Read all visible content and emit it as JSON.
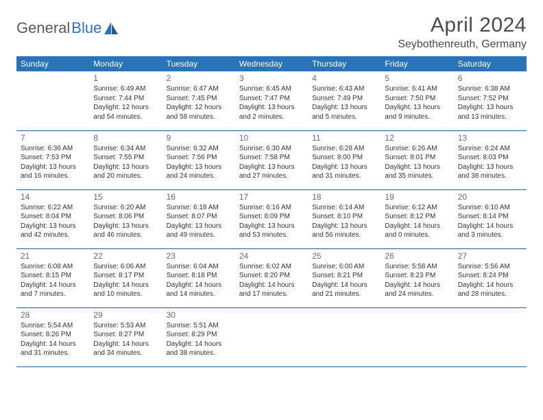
{
  "brand": {
    "part1": "General",
    "part2": "Blue"
  },
  "title": "April 2024",
  "location": "Seybothenreuth, Germany",
  "colors": {
    "header_bg": "#2a73b8",
    "header_text": "#ffffff",
    "row_border": "#2a5a8a",
    "body_text": "#333333",
    "daynum_text": "#6a6a6a",
    "title_text": "#4a4a4a",
    "brand_gray": "#5a5a5a",
    "brand_blue": "#2a73b8",
    "page_bg": "#ffffff"
  },
  "dow": [
    "Sunday",
    "Monday",
    "Tuesday",
    "Wednesday",
    "Thursday",
    "Friday",
    "Saturday"
  ],
  "weeks": [
    [
      {
        "n": "",
        "sun": "",
        "set": "",
        "day": ""
      },
      {
        "n": "1",
        "sun": "Sunrise: 6:49 AM",
        "set": "Sunset: 7:44 PM",
        "day": "Daylight: 12 hours and 54 minutes."
      },
      {
        "n": "2",
        "sun": "Sunrise: 6:47 AM",
        "set": "Sunset: 7:45 PM",
        "day": "Daylight: 12 hours and 58 minutes."
      },
      {
        "n": "3",
        "sun": "Sunrise: 6:45 AM",
        "set": "Sunset: 7:47 PM",
        "day": "Daylight: 13 hours and 2 minutes."
      },
      {
        "n": "4",
        "sun": "Sunrise: 6:43 AM",
        "set": "Sunset: 7:49 PM",
        "day": "Daylight: 13 hours and 5 minutes."
      },
      {
        "n": "5",
        "sun": "Sunrise: 6:41 AM",
        "set": "Sunset: 7:50 PM",
        "day": "Daylight: 13 hours and 9 minutes."
      },
      {
        "n": "6",
        "sun": "Sunrise: 6:38 AM",
        "set": "Sunset: 7:52 PM",
        "day": "Daylight: 13 hours and 13 minutes."
      }
    ],
    [
      {
        "n": "7",
        "sun": "Sunrise: 6:36 AM",
        "set": "Sunset: 7:53 PM",
        "day": "Daylight: 13 hours and 16 minutes."
      },
      {
        "n": "8",
        "sun": "Sunrise: 6:34 AM",
        "set": "Sunset: 7:55 PM",
        "day": "Daylight: 13 hours and 20 minutes."
      },
      {
        "n": "9",
        "sun": "Sunrise: 6:32 AM",
        "set": "Sunset: 7:56 PM",
        "day": "Daylight: 13 hours and 24 minutes."
      },
      {
        "n": "10",
        "sun": "Sunrise: 6:30 AM",
        "set": "Sunset: 7:58 PM",
        "day": "Daylight: 13 hours and 27 minutes."
      },
      {
        "n": "11",
        "sun": "Sunrise: 6:28 AM",
        "set": "Sunset: 8:00 PM",
        "day": "Daylight: 13 hours and 31 minutes."
      },
      {
        "n": "12",
        "sun": "Sunrise: 6:26 AM",
        "set": "Sunset: 8:01 PM",
        "day": "Daylight: 13 hours and 35 minutes."
      },
      {
        "n": "13",
        "sun": "Sunrise: 6:24 AM",
        "set": "Sunset: 8:03 PM",
        "day": "Daylight: 13 hours and 38 minutes."
      }
    ],
    [
      {
        "n": "14",
        "sun": "Sunrise: 6:22 AM",
        "set": "Sunset: 8:04 PM",
        "day": "Daylight: 13 hours and 42 minutes."
      },
      {
        "n": "15",
        "sun": "Sunrise: 6:20 AM",
        "set": "Sunset: 8:06 PM",
        "day": "Daylight: 13 hours and 46 minutes."
      },
      {
        "n": "16",
        "sun": "Sunrise: 6:18 AM",
        "set": "Sunset: 8:07 PM",
        "day": "Daylight: 13 hours and 49 minutes."
      },
      {
        "n": "17",
        "sun": "Sunrise: 6:16 AM",
        "set": "Sunset: 8:09 PM",
        "day": "Daylight: 13 hours and 53 minutes."
      },
      {
        "n": "18",
        "sun": "Sunrise: 6:14 AM",
        "set": "Sunset: 8:10 PM",
        "day": "Daylight: 13 hours and 56 minutes."
      },
      {
        "n": "19",
        "sun": "Sunrise: 6:12 AM",
        "set": "Sunset: 8:12 PM",
        "day": "Daylight: 14 hours and 0 minutes."
      },
      {
        "n": "20",
        "sun": "Sunrise: 6:10 AM",
        "set": "Sunset: 8:14 PM",
        "day": "Daylight: 14 hours and 3 minutes."
      }
    ],
    [
      {
        "n": "21",
        "sun": "Sunrise: 6:08 AM",
        "set": "Sunset: 8:15 PM",
        "day": "Daylight: 14 hours and 7 minutes."
      },
      {
        "n": "22",
        "sun": "Sunrise: 6:06 AM",
        "set": "Sunset: 8:17 PM",
        "day": "Daylight: 14 hours and 10 minutes."
      },
      {
        "n": "23",
        "sun": "Sunrise: 6:04 AM",
        "set": "Sunset: 8:18 PM",
        "day": "Daylight: 14 hours and 14 minutes."
      },
      {
        "n": "24",
        "sun": "Sunrise: 6:02 AM",
        "set": "Sunset: 8:20 PM",
        "day": "Daylight: 14 hours and 17 minutes."
      },
      {
        "n": "25",
        "sun": "Sunrise: 6:00 AM",
        "set": "Sunset: 8:21 PM",
        "day": "Daylight: 14 hours and 21 minutes."
      },
      {
        "n": "26",
        "sun": "Sunrise: 5:58 AM",
        "set": "Sunset: 8:23 PM",
        "day": "Daylight: 14 hours and 24 minutes."
      },
      {
        "n": "27",
        "sun": "Sunrise: 5:56 AM",
        "set": "Sunset: 8:24 PM",
        "day": "Daylight: 14 hours and 28 minutes."
      }
    ],
    [
      {
        "n": "28",
        "sun": "Sunrise: 5:54 AM",
        "set": "Sunset: 8:26 PM",
        "day": "Daylight: 14 hours and 31 minutes."
      },
      {
        "n": "29",
        "sun": "Sunrise: 5:53 AM",
        "set": "Sunset: 8:27 PM",
        "day": "Daylight: 14 hours and 34 minutes."
      },
      {
        "n": "30",
        "sun": "Sunrise: 5:51 AM",
        "set": "Sunset: 8:29 PM",
        "day": "Daylight: 14 hours and 38 minutes."
      },
      {
        "n": "",
        "sun": "",
        "set": "",
        "day": ""
      },
      {
        "n": "",
        "sun": "",
        "set": "",
        "day": ""
      },
      {
        "n": "",
        "sun": "",
        "set": "",
        "day": ""
      },
      {
        "n": "",
        "sun": "",
        "set": "",
        "day": ""
      }
    ]
  ]
}
